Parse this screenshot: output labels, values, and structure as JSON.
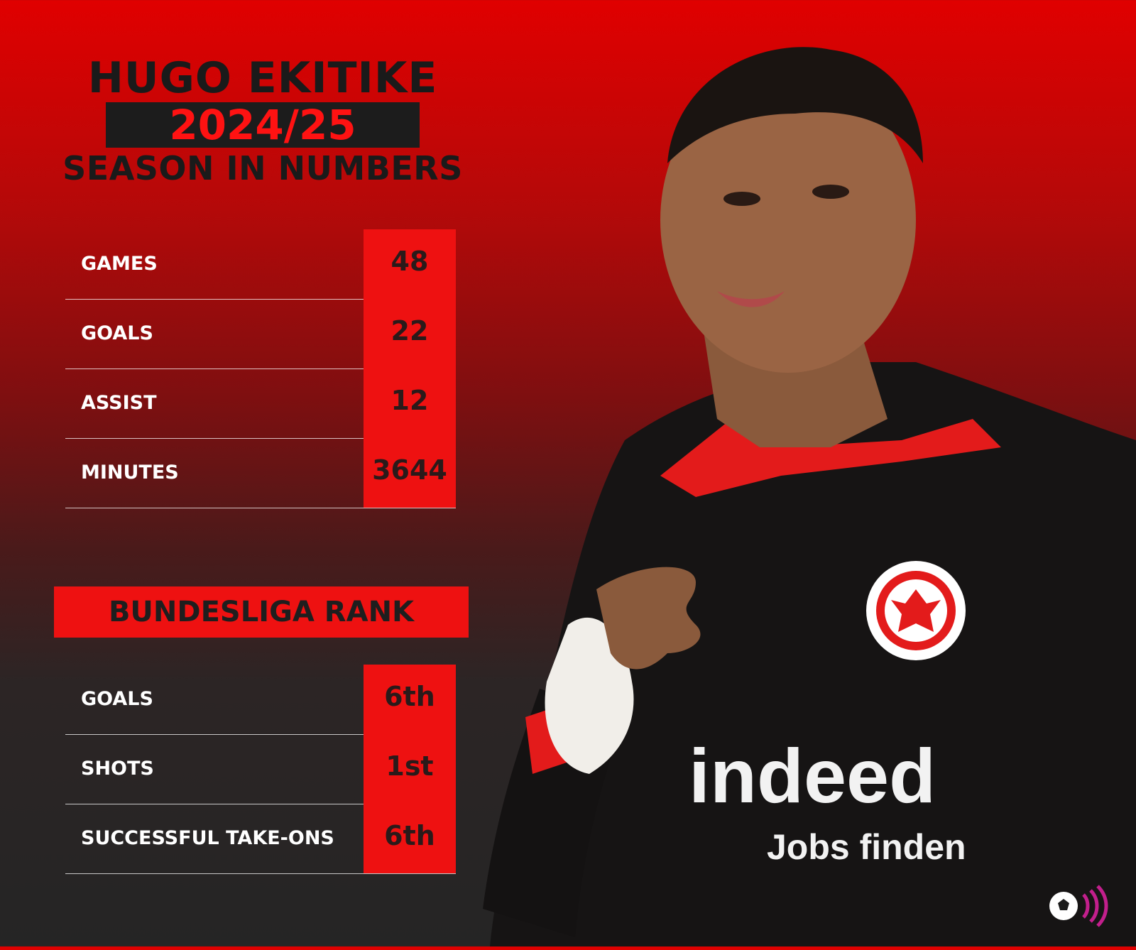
{
  "title": {
    "name": "HUGO EKITIKE",
    "season": "2024/25",
    "subtitle": "SEASON IN NUMBERS"
  },
  "season_stats": [
    {
      "label": "GAMES",
      "value": "48"
    },
    {
      "label": "GOALS",
      "value": "22"
    },
    {
      "label": "ASSIST",
      "value": "12"
    },
    {
      "label": "MINUTES",
      "value": "3644"
    }
  ],
  "rank_section": {
    "header": "BUNDESLIGA RANK",
    "rows": [
      {
        "label": "GOALS",
        "value": "6th"
      },
      {
        "label": "SHOTS",
        "value": "1st"
      },
      {
        "label": "SUCCESSFUL TAKE-ONS",
        "value": "6th"
      }
    ]
  },
  "player_image": {
    "sponsor_main": "indeed",
    "sponsor_sub": "Jobs finden"
  },
  "colors": {
    "accent_red": "#ee1111",
    "dark": "#1c1c1c",
    "text_light": "#ffffff"
  }
}
